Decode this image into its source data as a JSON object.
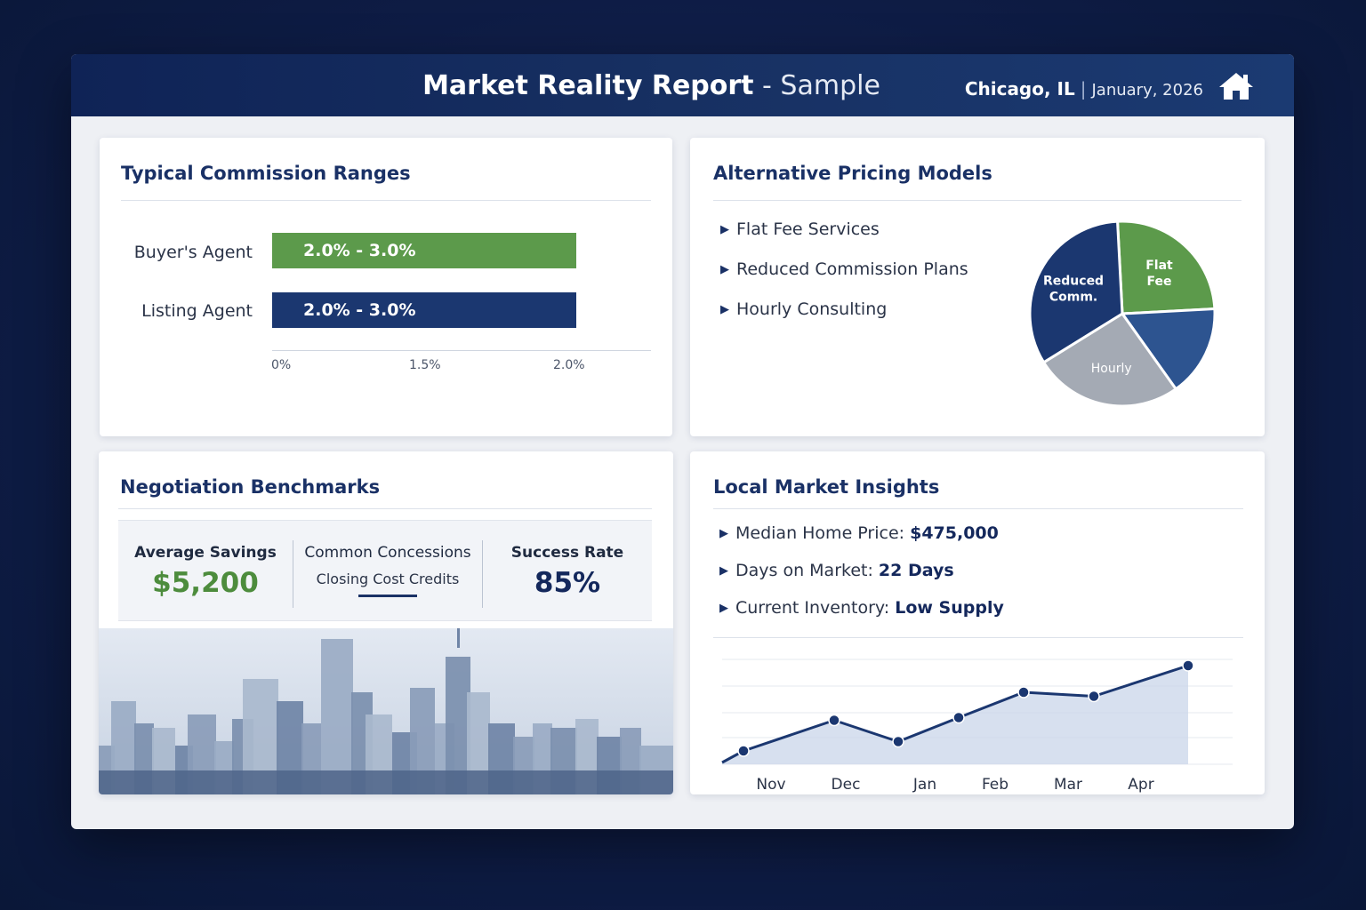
{
  "header": {
    "title_bold": "Market Reality Report",
    "title_rest": " - Sample",
    "city": "Chicago, IL",
    "separator": "|",
    "date": "January, 2026",
    "home_icon": "home-icon"
  },
  "commission": {
    "title": "Typical Commission Ranges",
    "rows": [
      {
        "label": "Buyer's Agent",
        "value": "2.0% - 3.0%",
        "color": "#5c9a4b"
      },
      {
        "label": "Listing Agent",
        "value": "2.0% - 3.0%",
        "color": "#1b3770"
      }
    ],
    "ticks": [
      "0%",
      "1.5%",
      "2.0%"
    ]
  },
  "pricing": {
    "title": "Alternative Pricing Models",
    "items": [
      "Flat Fee Services",
      "Reduced Commission Plans",
      "Hourly Consulting"
    ],
    "pie": {
      "slices": [
        {
          "label": "Flat Fee",
          "value": 25,
          "color": "#5c9a4b"
        },
        {
          "label": "",
          "value": 16,
          "color": "#2d5490"
        },
        {
          "label": "Hourly",
          "value": 26,
          "color": "#a4aab4"
        },
        {
          "label": "Reduced Comm.",
          "value": 33,
          "color": "#1b3770"
        }
      ]
    }
  },
  "negotiation": {
    "title": "Negotiation Benchmarks",
    "avg_label": "Average Savings",
    "avg_value": "$5,200",
    "concessions_label": "Common Concessions",
    "concessions_value": "Closing Cost Credits",
    "success_label": "Success Rate",
    "success_value": "85%",
    "green": "#4d8c3d",
    "navy": "#14285c"
  },
  "insights": {
    "title": "Local Market Insights",
    "items": [
      {
        "label": "Median Home Price: ",
        "value": "$475,000"
      },
      {
        "label": "Days on Market: ",
        "value": "22 Days"
      },
      {
        "label": "Current Inventory: ",
        "value": "Low Supply"
      }
    ]
  },
  "chart_data": {
    "type": "area",
    "categories": [
      "Nov",
      "Dec",
      "Jan",
      "Feb",
      "Mar",
      "Apr"
    ],
    "x": [
      "Nov",
      "Dec",
      "Jan",
      "Feb",
      "Mar",
      "Apr",
      ""
    ],
    "values": [
      1,
      3.3,
      1.7,
      3.5,
      5.4,
      5.1,
      7.4
    ],
    "ylim": [
      0,
      8
    ],
    "grid": true,
    "line_color": "#1b3770",
    "fill_color": "#c9d5ea"
  }
}
